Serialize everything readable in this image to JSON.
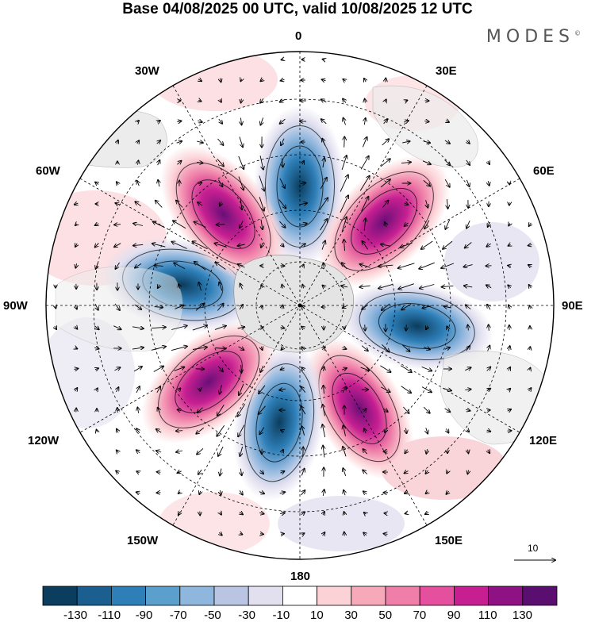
{
  "header": {
    "title": "Base 04/08/2025 00 UTC, valid 10/08/2025 12 UTC",
    "brand": "MODES",
    "brand_mark": "©"
  },
  "longitude_labels": {
    "north": "0",
    "east_30": "30E",
    "west_30": "30W",
    "east_60": "60E",
    "west_60": "60W",
    "east_90": "90E",
    "west_90": "90W",
    "east_120": "120E",
    "west_120": "120W",
    "east_150": "150E",
    "west_150": "150W",
    "south": "180"
  },
  "colorbar": {
    "colors": [
      "#0b3d5e",
      "#1a5f8f",
      "#2e7fb8",
      "#5b9fcc",
      "#8fb6dd",
      "#b9c5e3",
      "#e2e0ef",
      "#ffffff",
      "#fbd3d7",
      "#f6a9b8",
      "#ef7fa8",
      "#e4509d",
      "#c71f91",
      "#8e1284",
      "#5a0f70"
    ],
    "labels": [
      "-130",
      "-110",
      "-90",
      "-70",
      "-50",
      "-30",
      "-10",
      "10",
      "30",
      "50",
      "70",
      "90",
      "110",
      "130"
    ]
  },
  "reference_vector": {
    "label": "10"
  },
  "anomaly_lobes": [
    {
      "name": "lobe-neg-0",
      "sign": "negative",
      "peak": -130,
      "lon": 0
    },
    {
      "name": "lobe-pos-45e",
      "sign": "positive",
      "peak": 130,
      "lon": 45
    },
    {
      "name": "lobe-neg-100e",
      "sign": "negative",
      "peak": -90,
      "lon": 100
    },
    {
      "name": "lobe-pos-150e",
      "sign": "positive",
      "peak": 90,
      "lon": 150
    },
    {
      "name": "lobe-neg-170w",
      "sign": "negative",
      "peak": -110,
      "lon": -170
    },
    {
      "name": "lobe-pos-130w",
      "sign": "positive",
      "peak": 110,
      "lon": -130
    },
    {
      "name": "lobe-neg-80w",
      "sign": "negative",
      "peak": -130,
      "lon": -80
    },
    {
      "name": "lobe-pos-40w",
      "sign": "positive",
      "peak": 130,
      "lon": -40
    }
  ]
}
